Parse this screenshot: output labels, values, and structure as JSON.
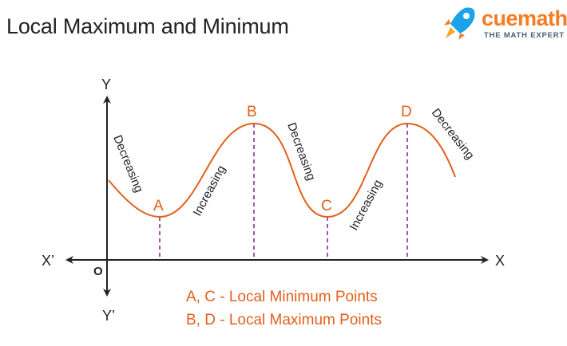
{
  "title": "Local Maximum and Minimum",
  "brand": {
    "name": "cuemath",
    "tagline": "THE MATH EXPERT",
    "icon": "rocket-icon",
    "colors": {
      "orange": "#f57c21",
      "blue": "#1aa3e8",
      "navy": "#4a5a7a"
    }
  },
  "axes": {
    "x_pos": "X",
    "x_neg": "X’",
    "y_pos": "Y",
    "y_neg": "Y’",
    "origin": "O"
  },
  "points": {
    "a": "A",
    "b": "B",
    "c": "C",
    "d": "D"
  },
  "trends": {
    "t1": "Decreasing",
    "t2": "Increasing",
    "t3": "Decreasing",
    "t4": "Increasing",
    "t5": "Decreasing"
  },
  "legend": {
    "minimum": "A, C - Local Minimum Points",
    "maximum": "B, D - Local Maximum Points"
  },
  "colors": {
    "curve": "#e2601a",
    "guides": "#8b2c8f",
    "axes": "#222222"
  }
}
